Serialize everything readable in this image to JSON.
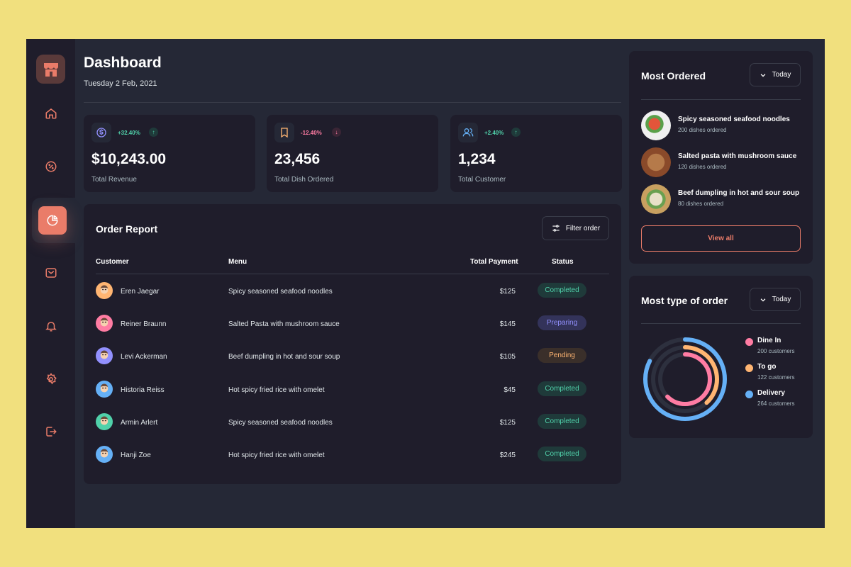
{
  "header": {
    "title": "Dashboard",
    "date": "Tuesday 2 Feb, 2021"
  },
  "sidebar": {
    "items": [
      {
        "name": "home-icon"
      },
      {
        "name": "discount-icon"
      },
      {
        "name": "dashboard-pie-icon",
        "active": true
      },
      {
        "name": "message-icon"
      },
      {
        "name": "notification-icon"
      },
      {
        "name": "settings-icon"
      },
      {
        "name": "logout-icon"
      }
    ]
  },
  "stats": [
    {
      "icon": "dollar-icon",
      "change": "+32.40%",
      "direction": "up",
      "value": "$10,243.00",
      "label": "Total Revenue"
    },
    {
      "icon": "bookmark-icon",
      "change": "-12.40%",
      "direction": "down",
      "value": "23,456",
      "label": "Total Dish Ordered"
    },
    {
      "icon": "customers-icon",
      "change": "+2.40%",
      "direction": "up",
      "value": "1,234",
      "label": "Total Customer"
    }
  ],
  "order_report": {
    "title": "Order Report",
    "filter_label": "Filter order",
    "columns": {
      "customer": "Customer",
      "menu": "Menu",
      "payment": "Total Payment",
      "status": "Status"
    },
    "rows": [
      {
        "customer": "Eren Jaegar",
        "menu": "Spicy seasoned seafood noodles",
        "payment": "$125",
        "status": "Completed",
        "avatar_color": "#ffb572"
      },
      {
        "customer": "Reiner Braunn",
        "menu": "Salted Pasta with mushroom sauce",
        "payment": "$145",
        "status": "Preparing",
        "avatar_color": "#ff7ca3"
      },
      {
        "customer": "Levi Ackerman",
        "menu": "Beef dumpling in hot and sour soup",
        "payment": "$105",
        "status": "Pending",
        "avatar_color": "#9290fe"
      },
      {
        "customer": "Historia Reiss",
        "menu": "Hot spicy fried rice with omelet",
        "payment": "$45",
        "status": "Completed",
        "avatar_color": "#65b0f6"
      },
      {
        "customer": "Armin Arlert",
        "menu": "Spicy seasoned seafood noodles",
        "payment": "$125",
        "status": "Completed",
        "avatar_color": "#50d1aa"
      },
      {
        "customer": "Hanji Zoe",
        "menu": "Hot spicy fried rice with omelet",
        "payment": "$245",
        "status": "Completed",
        "avatar_color": "#65b0f6"
      }
    ]
  },
  "most_ordered": {
    "title": "Most Ordered",
    "filter": "Today",
    "items": [
      {
        "name": "Spicy seasoned seafood noodles",
        "count": "200 dishes ordered"
      },
      {
        "name": "Salted pasta with mushroom sauce",
        "count": "120 dishes ordered"
      },
      {
        "name": "Beef dumpling in hot and sour soup",
        "count": "80 dishes ordered"
      }
    ],
    "view_all": "View all"
  },
  "order_types": {
    "title": "Most type of order",
    "filter": "Today",
    "items": [
      {
        "name": "Dine In",
        "count": "200 customers",
        "color": "#ff7ca3",
        "value": 200
      },
      {
        "name": "To go",
        "count": "122 customers",
        "color": "#ffb572",
        "value": 122
      },
      {
        "name": "Delivery",
        "count": "264 customers",
        "color": "#65b0f6",
        "value": 264
      }
    ]
  },
  "colors": {
    "accent": "#ea7c69",
    "completed": "#50d1aa",
    "preparing": "#9290fe",
    "pending": "#ffb572",
    "positive": "#50d1aa",
    "negative": "#ff7ca3"
  }
}
